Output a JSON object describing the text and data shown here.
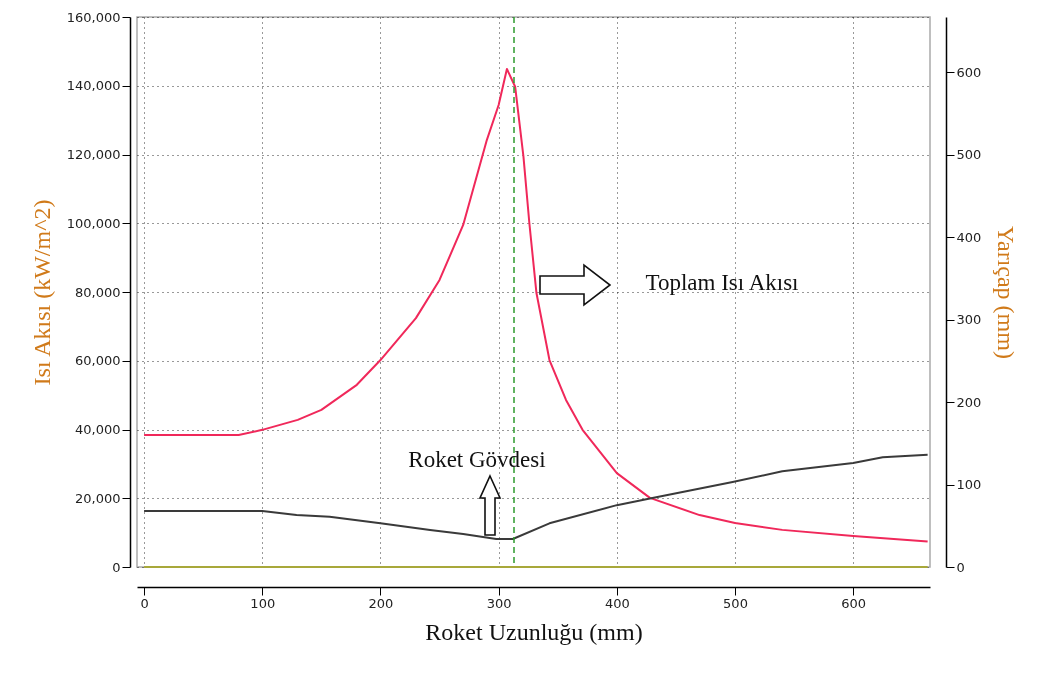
{
  "chart_data": {
    "type": "line",
    "xlabel": "Roket Uzunluğu (mm)",
    "ylabel": "Isı Akısı (kW/m^2)",
    "y2label": "Yarıçap (mm)",
    "xlim": [
      -6,
      665
    ],
    "xticks": [
      0,
      100,
      200,
      300,
      400,
      500,
      600
    ],
    "ylim": [
      0,
      160000
    ],
    "yticks": [
      0,
      {
        "value": 20000,
        "label": "20,000"
      },
      {
        "value": 40000,
        "label": "40,000"
      },
      {
        "value": 60000,
        "label": "60,000"
      },
      {
        "value": 80000,
        "label": "80,000"
      },
      {
        "value": 100000,
        "label": "100,000"
      },
      {
        "value": 120000,
        "label": "120,000"
      },
      {
        "value": 140000,
        "label": "140,000"
      },
      {
        "value": 160000,
        "label": "160,000"
      }
    ],
    "y2lim": [
      0,
      667
    ],
    "y2ticks": [
      0,
      100,
      200,
      300,
      400,
      500,
      600
    ],
    "grid": true,
    "line_style": "solid",
    "series": [
      {
        "color": "#f0285a",
        "x": [
          0,
          80,
          100,
          130,
          150,
          180,
          200,
          230,
          250,
          270,
          290,
          300,
          307,
          314,
          321,
          326,
          332,
          343,
          357,
          371,
          400,
          428,
          470,
          500,
          540,
          600,
          663
        ],
        "values": [
          38400,
          38400,
          39900,
          42800,
          45700,
          53000,
          60200,
          72400,
          83500,
          99500,
          124200,
          134400,
          144900,
          139700,
          119400,
          100000,
          79700,
          60200,
          48600,
          39900,
          27300,
          20100,
          15100,
          12800,
          10800,
          9000,
          7400
        ]
      },
      {
        "color": "#3a3a3a",
        "axis": "y2",
        "x": [
          0,
          100,
          129,
          157,
          200,
          242,
          270,
          298,
          312,
          343,
          400,
          428,
          498,
          540,
          600,
          625,
          663
        ],
        "values": [
          68,
          68,
          63,
          61,
          53,
          45,
          40,
          34,
          34,
          53,
          75,
          83,
          103,
          116,
          126,
          133,
          136
        ]
      },
      {
        "color": "#a8a83a",
        "x": [
          0,
          663
        ],
        "values": [
          0,
          0
        ]
      }
    ],
    "ref_lines": [
      {
        "axis": "x",
        "value": 313,
        "color": "#2e9a2e",
        "line_style": "dashed"
      }
    ],
    "annotations": [
      "Toplam Isı Akısı",
      "Roket Gövdesi"
    ]
  }
}
